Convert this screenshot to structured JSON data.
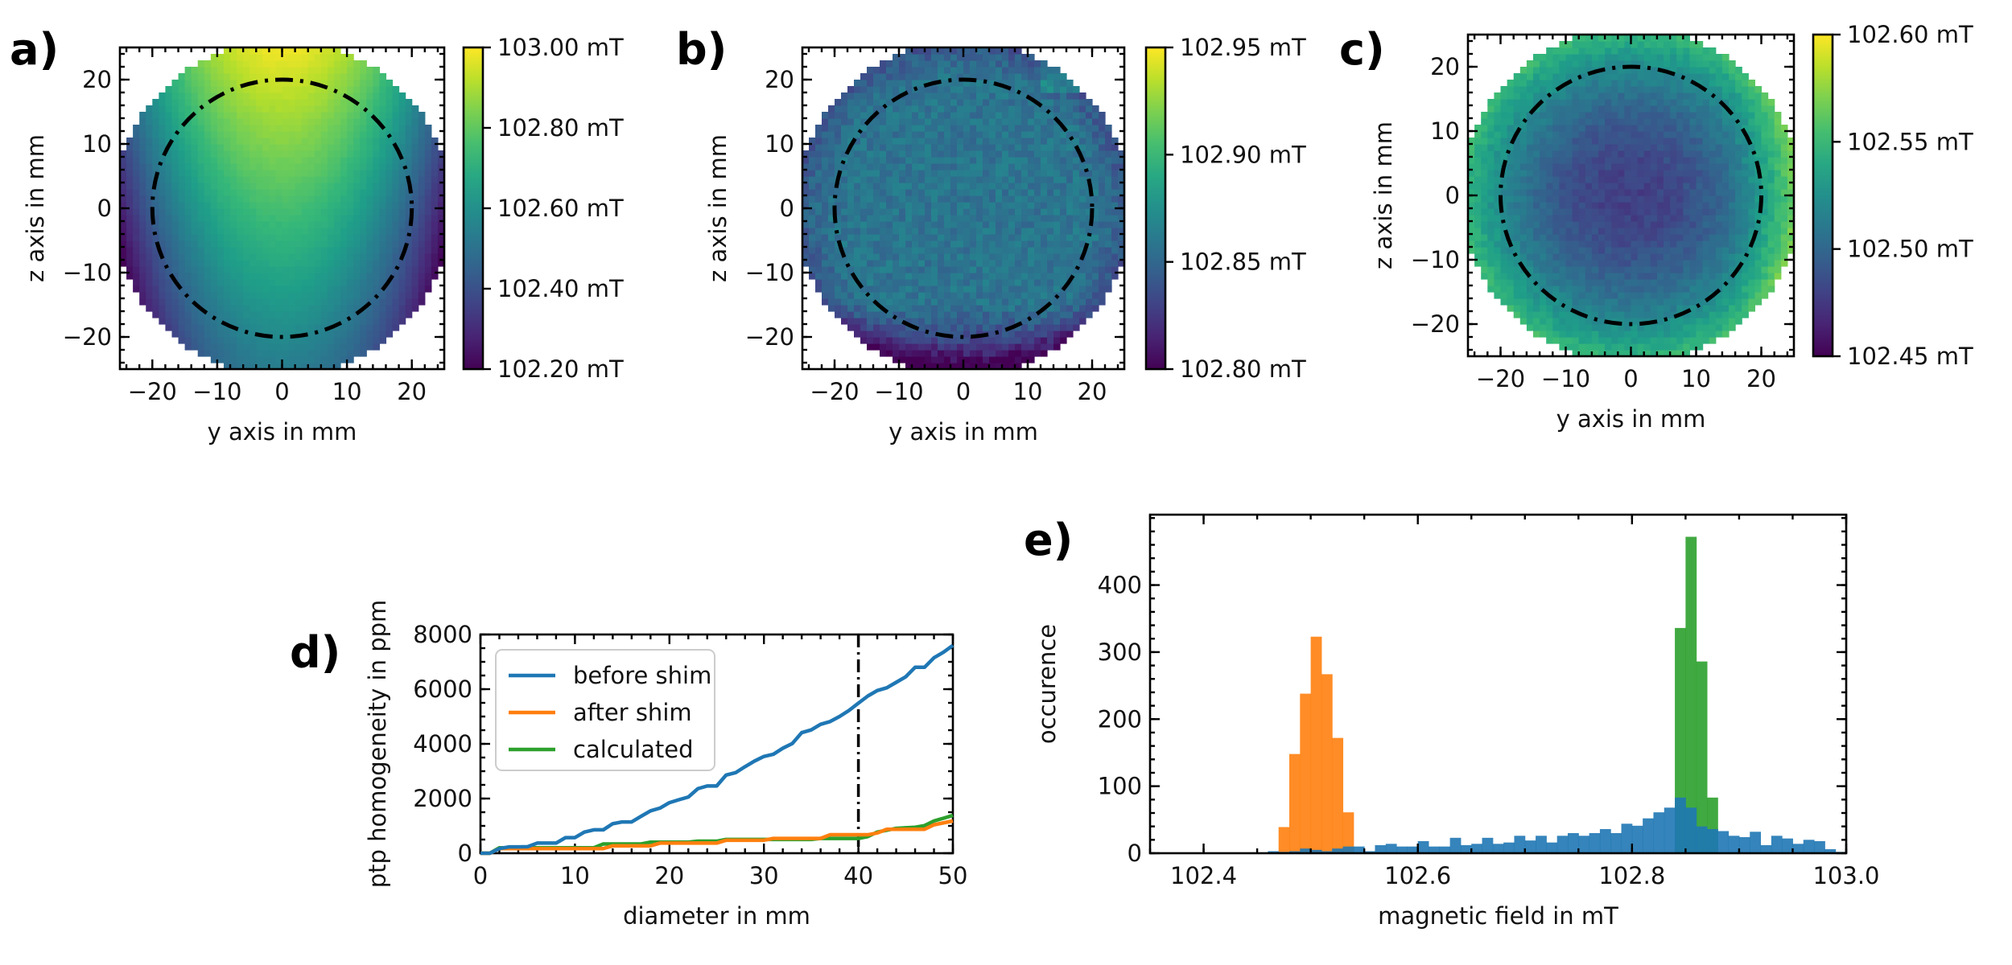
{
  "chart_data": [
    {
      "panel": "a)",
      "type": "heatmap",
      "xlabel": "y axis in mm",
      "ylabel": "z axis in mm",
      "xlim": [
        -25,
        25
      ],
      "ylim": [
        -25,
        25
      ],
      "xticks": [
        -20,
        -10,
        0,
        10,
        20
      ],
      "xtick_labels": [
        "−20",
        "−10",
        "0",
        "10",
        "20"
      ],
      "yticks": [
        -20,
        -10,
        0,
        10,
        20
      ],
      "ytick_labels": [
        "−20",
        "−10",
        "0",
        "10",
        "20"
      ],
      "colormap": "viridis",
      "colorbar": {
        "range": [
          102.2,
          103.0
        ],
        "ticks": [
          102.2,
          102.4,
          102.6,
          102.8,
          103.0
        ],
        "tick_labels": [
          "102.20 mT",
          "102.40 mT",
          "102.60 mT",
          "102.80 mT",
          "103.00 mT"
        ]
      },
      "annotation": {
        "shape": "circle",
        "radius_mm": 20,
        "style": "dash-dot"
      }
    },
    {
      "panel": "b)",
      "type": "heatmap",
      "xlabel": "y axis in mm",
      "ylabel": "z axis in mm",
      "xlim": [
        -25,
        25
      ],
      "ylim": [
        -25,
        25
      ],
      "xticks": [
        -20,
        -10,
        0,
        10,
        20
      ],
      "xtick_labels": [
        "−20",
        "−10",
        "0",
        "10",
        "20"
      ],
      "yticks": [
        -20,
        -10,
        0,
        10,
        20
      ],
      "ytick_labels": [
        "−20",
        "−10",
        "0",
        "10",
        "20"
      ],
      "colormap": "viridis",
      "colorbar": {
        "range": [
          102.8,
          102.95
        ],
        "ticks": [
          102.8,
          102.85,
          102.9,
          102.95
        ],
        "tick_labels": [
          "102.80 mT",
          "102.85 mT",
          "102.90 mT",
          "102.95 mT"
        ]
      },
      "annotation": {
        "shape": "circle",
        "radius_mm": 20,
        "style": "dash-dot"
      }
    },
    {
      "panel": "c)",
      "type": "heatmap",
      "xlabel": "y axis in mm",
      "ylabel": "z axis in mm",
      "xlim": [
        -25,
        25
      ],
      "ylim": [
        -25,
        25
      ],
      "xticks": [
        -20,
        -10,
        0,
        10,
        20
      ],
      "xtick_labels": [
        "−20",
        "−10",
        "0",
        "10",
        "20"
      ],
      "yticks": [
        -20,
        -10,
        0,
        10,
        20
      ],
      "ytick_labels": [
        "−20",
        "−10",
        "0",
        "10",
        "20"
      ],
      "colormap": "viridis",
      "colorbar": {
        "range": [
          102.45,
          102.6
        ],
        "ticks": [
          102.45,
          102.5,
          102.55,
          102.6
        ],
        "tick_labels": [
          "102.45 mT",
          "102.50 mT",
          "102.55 mT",
          "102.60 mT"
        ]
      },
      "annotation": {
        "shape": "circle",
        "radius_mm": 20,
        "style": "dash-dot"
      }
    },
    {
      "panel": "d)",
      "type": "line",
      "xlabel": "diameter in mm",
      "ylabel": "ptp homogeneity in ppm",
      "xlim": [
        0,
        50
      ],
      "ylim": [
        0,
        8000
      ],
      "xticks": [
        0,
        10,
        20,
        30,
        40,
        50
      ],
      "xtick_labels": [
        "0",
        "10",
        "20",
        "30",
        "40",
        "50"
      ],
      "yticks": [
        0,
        2000,
        4000,
        6000,
        8000
      ],
      "ytick_labels": [
        "0",
        "2000",
        "4000",
        "6000",
        "8000"
      ],
      "legend": "upper-left",
      "vline": {
        "x": 40,
        "style": "dash-dot"
      },
      "series": [
        {
          "name": "before shim",
          "color": "#1f77b4",
          "x": [
            0,
            1,
            2,
            3,
            4,
            5,
            6,
            7,
            8,
            9,
            10,
            11,
            12,
            13,
            14,
            15,
            16,
            17,
            18,
            19,
            20,
            21,
            22,
            23,
            24,
            25,
            26,
            27,
            28,
            29,
            30,
            31,
            32,
            33,
            34,
            35,
            36,
            37,
            38,
            39,
            40,
            41,
            42,
            43,
            44,
            45,
            46,
            47,
            48,
            49,
            50
          ],
          "y": [
            0,
            0,
            170,
            230,
            230,
            240,
            370,
            370,
            370,
            570,
            570,
            775,
            855,
            855,
            1080,
            1145,
            1145,
            1350,
            1550,
            1650,
            1850,
            1955,
            2055,
            2360,
            2460,
            2460,
            2860,
            2945,
            3165,
            3370,
            3540,
            3620,
            3840,
            4010,
            4410,
            4510,
            4715,
            4815,
            5000,
            5220,
            5490,
            5750,
            5950,
            6050,
            6250,
            6450,
            6800,
            6800,
            7150,
            7350,
            7600
          ]
        },
        {
          "name": "after shim",
          "color": "#ff7f0e",
          "x": [
            0,
            1,
            2,
            3,
            4,
            5,
            6,
            7,
            8,
            9,
            10,
            11,
            12,
            13,
            14,
            15,
            16,
            17,
            18,
            19,
            20,
            21,
            22,
            23,
            24,
            25,
            26,
            27,
            28,
            29,
            30,
            31,
            32,
            33,
            34,
            35,
            36,
            37,
            38,
            39,
            40,
            41,
            42,
            43,
            44,
            45,
            46,
            47,
            48,
            49,
            50
          ],
          "y": [
            0,
            0,
            170,
            170,
            170,
            170,
            170,
            170,
            170,
            170,
            170,
            170,
            170,
            170,
            270,
            270,
            270,
            270,
            270,
            370,
            370,
            370,
            370,
            370,
            370,
            370,
            475,
            475,
            475,
            475,
            475,
            540,
            540,
            540,
            540,
            540,
            540,
            675,
            675,
            675,
            675,
            675,
            740,
            875,
            875,
            875,
            875,
            875,
            1040,
            1110,
            1180
          ]
        },
        {
          "name": "calculated",
          "color": "#2ca02c",
          "x": [
            0,
            1,
            2,
            3,
            4,
            5,
            6,
            7,
            8,
            9,
            10,
            11,
            12,
            13,
            14,
            15,
            16,
            17,
            18,
            19,
            20,
            21,
            22,
            23,
            24,
            25,
            26,
            27,
            28,
            29,
            30,
            31,
            32,
            33,
            34,
            35,
            36,
            37,
            38,
            39,
            40,
            41,
            42,
            43,
            44,
            45,
            46,
            47,
            48,
            49,
            50
          ],
          "y": [
            0,
            0,
            200,
            200,
            200,
            200,
            200,
            200,
            200,
            200,
            200,
            200,
            200,
            340,
            340,
            340,
            340,
            340,
            405,
            405,
            405,
            405,
            405,
            440,
            440,
            440,
            505,
            505,
            505,
            505,
            505,
            505,
            505,
            505,
            505,
            505,
            540,
            540,
            540,
            540,
            540,
            610,
            775,
            840,
            910,
            930,
            950,
            1010,
            1180,
            1280,
            1385
          ]
        }
      ]
    },
    {
      "panel": "e)",
      "type": "histogram",
      "xlabel": "magnetic field in mT",
      "ylabel": "occurence",
      "xlim": [
        102.35,
        103.0
      ],
      "ylim": [
        0,
        505
      ],
      "xticks": [
        102.4,
        102.6,
        102.8,
        103.0
      ],
      "xtick_labels": [
        "102.4",
        "102.6",
        "102.8",
        "103.0"
      ],
      "yticks": [
        0,
        100,
        200,
        300,
        400
      ],
      "ytick_labels": [
        "0",
        "100",
        "200",
        "300",
        "400"
      ],
      "bin_width": 0.01,
      "series": [
        {
          "color": "#ff7f0e",
          "bin_start": 102.47,
          "counts": [
            39,
            148,
            238,
            323,
            267,
            172,
            61
          ]
        },
        {
          "color": "#2ca02c",
          "bin_start": 102.84,
          "counts": [
            336,
            472,
            286,
            83
          ]
        },
        {
          "color": "#1f77b4",
          "bin_start": 102.46,
          "counts": [
            3,
            2,
            3,
            7,
            5,
            3,
            7,
            10,
            10,
            3,
            12,
            14,
            10,
            10,
            18,
            10,
            10,
            23,
            12,
            14,
            23,
            14,
            16,
            26,
            19,
            26,
            16,
            26,
            30,
            26,
            30,
            36,
            30,
            44,
            41,
            52,
            61,
            68,
            83,
            68,
            40,
            36,
            33,
            26,
            24,
            32,
            12,
            26,
            22,
            14,
            20,
            18,
            6,
            2
          ]
        }
      ]
    }
  ]
}
